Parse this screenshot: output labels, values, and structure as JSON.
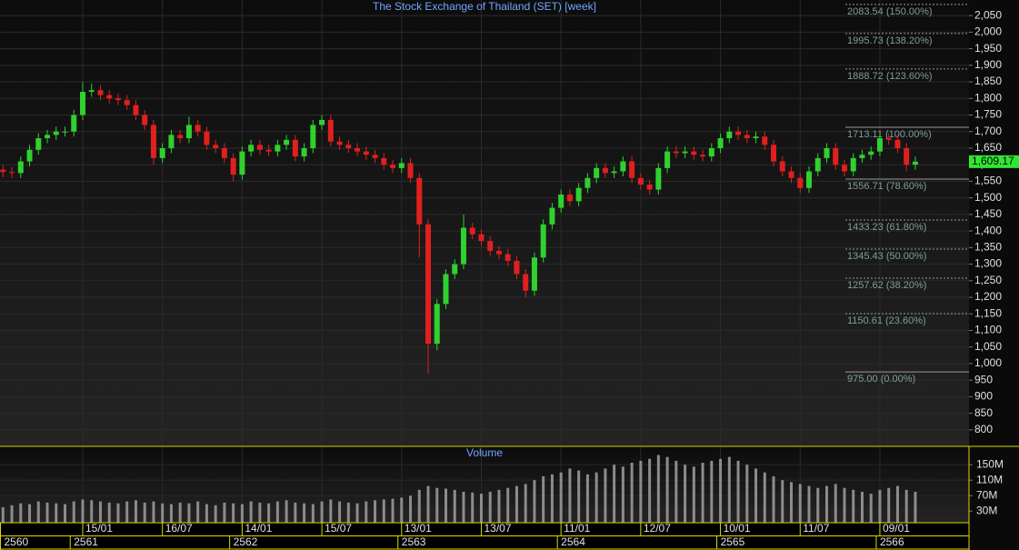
{
  "chart_data": {
    "type": "candlestick",
    "title": "The Stock Exchange of Thailand (SET) [week]",
    "up_color": "#2fd12f",
    "down_color": "#e0201f",
    "grid": true,
    "categories": [
      null,
      null,
      null,
      null,
      null,
      null,
      null,
      null,
      null,
      "15/01",
      null,
      null,
      null,
      null,
      null,
      null,
      null,
      null,
      "16/07",
      null,
      null,
      null,
      null,
      null,
      null,
      null,
      null,
      "14/01",
      null,
      null,
      null,
      null,
      null,
      null,
      null,
      null,
      "15/07",
      null,
      null,
      null,
      null,
      null,
      null,
      null,
      null,
      "13/01",
      null,
      null,
      null,
      null,
      null,
      null,
      null,
      null,
      "13/07",
      null,
      null,
      null,
      null,
      null,
      null,
      null,
      null,
      "11/01",
      null,
      null,
      null,
      null,
      null,
      null,
      null,
      null,
      "12/07",
      null,
      null,
      null,
      null,
      null,
      null,
      null,
      null,
      "10/01",
      null,
      null,
      null,
      null,
      null,
      null,
      null,
      null,
      "11/07",
      null,
      null,
      null,
      null,
      null,
      null,
      null,
      null,
      "09/01",
      null,
      null,
      null,
      null
    ],
    "years": [
      "2560",
      null,
      null,
      null,
      null,
      null,
      null,
      null,
      "2561",
      null,
      null,
      null,
      null,
      null,
      null,
      null,
      null,
      null,
      null,
      null,
      null,
      null,
      null,
      null,
      null,
      null,
      "2562",
      null,
      null,
      null,
      null,
      null,
      null,
      null,
      null,
      null,
      null,
      null,
      null,
      null,
      null,
      null,
      null,
      null,
      null,
      "2563",
      null,
      null,
      null,
      null,
      null,
      null,
      null,
      null,
      null,
      null,
      null,
      null,
      null,
      null,
      null,
      null,
      null,
      "2564",
      null,
      null,
      null,
      null,
      null,
      null,
      null,
      null,
      null,
      null,
      null,
      null,
      null,
      null,
      null,
      null,
      null,
      "2565",
      null,
      null,
      null,
      null,
      null,
      null,
      null,
      null,
      null,
      null,
      null,
      null,
      null,
      null,
      null,
      null,
      null,
      "2566",
      null,
      null,
      null,
      null
    ],
    "open": [
      1585,
      1578,
      1575,
      1610,
      1645,
      1680,
      1690,
      1700,
      1700,
      1750,
      1820,
      1825,
      1810,
      1800,
      1795,
      1780,
      1750,
      1720,
      1620,
      1650,
      1690,
      1680,
      1720,
      1700,
      1660,
      1650,
      1620,
      1570,
      1640,
      1660,
      1645,
      1640,
      1660,
      1675,
      1625,
      1650,
      1720,
      1735,
      1670,
      1660,
      1650,
      1640,
      1630,
      1620,
      1600,
      1590,
      1605,
      1560,
      1420,
      1060,
      1180,
      1270,
      1300,
      1410,
      1390,
      1370,
      1340,
      1330,
      1310,
      1270,
      1220,
      1320,
      1420,
      1470,
      1510,
      1490,
      1530,
      1560,
      1590,
      1575,
      1580,
      1610,
      1560,
      1540,
      1525,
      1590,
      1640,
      1635,
      1640,
      1630,
      1625,
      1650,
      1680,
      1700,
      1690,
      1680,
      1685,
      1660,
      1610,
      1580,
      1560,
      1530,
      1580,
      1620,
      1650,
      1600,
      1580,
      1620,
      1630,
      1640,
      1680,
      1675,
      1650,
      1600
    ],
    "high": [
      1600,
      1593,
      1625,
      1660,
      1695,
      1705,
      1715,
      1715,
      1765,
      1850,
      1845,
      1840,
      1825,
      1815,
      1810,
      1795,
      1765,
      1735,
      1665,
      1705,
      1705,
      1745,
      1735,
      1715,
      1675,
      1665,
      1635,
      1655,
      1675,
      1675,
      1660,
      1675,
      1690,
      1690,
      1665,
      1735,
      1750,
      1750,
      1685,
      1675,
      1665,
      1655,
      1645,
      1635,
      1615,
      1620,
      1620,
      1575,
      1435,
      1195,
      1285,
      1315,
      1450,
      1425,
      1405,
      1385,
      1355,
      1345,
      1325,
      1285,
      1335,
      1435,
      1485,
      1525,
      1525,
      1545,
      1575,
      1605,
      1605,
      1595,
      1625,
      1625,
      1575,
      1555,
      1605,
      1655,
      1655,
      1655,
      1655,
      1645,
      1665,
      1695,
      1715,
      1715,
      1705,
      1700,
      1700,
      1675,
      1625,
      1595,
      1575,
      1595,
      1635,
      1665,
      1665,
      1615,
      1635,
      1645,
      1655,
      1695,
      1695,
      1690,
      1665,
      1625
    ],
    "low": [
      1563,
      1560,
      1560,
      1595,
      1630,
      1665,
      1675,
      1685,
      1685,
      1735,
      1805,
      1795,
      1785,
      1780,
      1765,
      1735,
      1705,
      1600,
      1605,
      1635,
      1665,
      1665,
      1685,
      1645,
      1635,
      1605,
      1550,
      1555,
      1625,
      1630,
      1625,
      1625,
      1645,
      1610,
      1610,
      1635,
      1705,
      1655,
      1645,
      1635,
      1625,
      1615,
      1605,
      1585,
      1575,
      1575,
      1545,
      1320,
      970,
      1040,
      1165,
      1255,
      1285,
      1375,
      1355,
      1325,
      1315,
      1295,
      1255,
      1200,
      1205,
      1305,
      1405,
      1455,
      1475,
      1475,
      1515,
      1545,
      1560,
      1560,
      1565,
      1545,
      1525,
      1510,
      1510,
      1575,
      1620,
      1620,
      1615,
      1610,
      1610,
      1635,
      1665,
      1675,
      1665,
      1665,
      1645,
      1595,
      1565,
      1545,
      1515,
      1515,
      1565,
      1605,
      1585,
      1565,
      1565,
      1605,
      1615,
      1625,
      1660,
      1635,
      1580,
      1585
    ],
    "close": [
      1578,
      1575,
      1610,
      1645,
      1680,
      1690,
      1700,
      1700,
      1750,
      1820,
      1825,
      1810,
      1800,
      1795,
      1780,
      1750,
      1720,
      1620,
      1650,
      1690,
      1680,
      1720,
      1700,
      1660,
      1650,
      1620,
      1570,
      1640,
      1660,
      1645,
      1640,
      1660,
      1675,
      1625,
      1650,
      1720,
      1735,
      1670,
      1660,
      1650,
      1640,
      1630,
      1620,
      1600,
      1590,
      1605,
      1560,
      1420,
      1060,
      1180,
      1270,
      1300,
      1410,
      1390,
      1370,
      1340,
      1330,
      1310,
      1270,
      1220,
      1320,
      1420,
      1470,
      1510,
      1490,
      1530,
      1560,
      1590,
      1575,
      1580,
      1610,
      1560,
      1540,
      1525,
      1590,
      1640,
      1635,
      1640,
      1630,
      1625,
      1650,
      1680,
      1700,
      1690,
      1680,
      1685,
      1660,
      1610,
      1580,
      1560,
      1530,
      1580,
      1620,
      1650,
      1600,
      1580,
      1620,
      1630,
      1640,
      1680,
      1675,
      1650,
      1600,
      1609.17
    ],
    "ylim": [
      753,
      2097
    ],
    "yticks": [
      800,
      850,
      900,
      950,
      {
        "value": 1000,
        "label": "1,000"
      },
      {
        "value": 1050,
        "label": "1,050"
      },
      {
        "value": 1100,
        "label": "1,100"
      },
      {
        "value": 1150,
        "label": "1,150"
      },
      {
        "value": 1200,
        "label": "1,200"
      },
      {
        "value": 1250,
        "label": "1,250"
      },
      {
        "value": 1300,
        "label": "1,300"
      },
      {
        "value": 1350,
        "label": "1,350"
      },
      {
        "value": 1400,
        "label": "1,400"
      },
      {
        "value": 1450,
        "label": "1,450"
      },
      {
        "value": 1500,
        "label": "1,500"
      },
      {
        "value": 1550,
        "label": "1,550"
      },
      {
        "value": 1600,
        "label": "1,600"
      },
      {
        "value": 1650,
        "label": "1,650"
      },
      {
        "value": 1700,
        "label": "1,700"
      },
      {
        "value": 1750,
        "label": "1,750"
      },
      {
        "value": 1800,
        "label": "1,800"
      },
      {
        "value": 1850,
        "label": "1,850"
      },
      {
        "value": 1900,
        "label": "1,900"
      },
      {
        "value": 1950,
        "label": "1,950"
      },
      {
        "value": 2000,
        "label": "2,000"
      },
      {
        "value": 2050,
        "label": "2,050"
      }
    ],
    "last_price": {
      "value": 1609.17,
      "label": "1,609.17",
      "color": "#33e633"
    },
    "levels": [
      {
        "value": 2083.54,
        "label": "2083.54 (150.00%)",
        "dashed": true
      },
      {
        "value": 1995.73,
        "label": "1995.73 (138.20%)",
        "dashed": true
      },
      {
        "value": 1888.72,
        "label": "1888.72 (123.60%)",
        "dashed": true
      },
      {
        "value": 1713.11,
        "label": "1713.11 (100.00%)",
        "dashed": false
      },
      {
        "value": 1556.71,
        "label": "1556.71 (78.60%)",
        "dashed": false
      },
      {
        "value": 1433.23,
        "label": "1433.23 (61.80%)",
        "dashed": true
      },
      {
        "value": 1345.43,
        "label": "1345.43 (50.00%)",
        "dashed": true
      },
      {
        "value": 1257.62,
        "label": "1257.62 (38.20%)",
        "dashed": true
      },
      {
        "value": 1150.61,
        "label": "1150.61 (23.60%)",
        "dashed": true
      },
      {
        "value": 975.0,
        "label": "975.00 (0.00%)",
        "dashed": false
      }
    ],
    "volume": {
      "title": "Volume",
      "color": "#8c8c8c",
      "ylim": [
        0,
        195
      ],
      "yticks": [
        {
          "value": 30,
          "label": "30M"
        },
        {
          "value": 70,
          "label": "70M"
        },
        {
          "value": 110,
          "label": "110M"
        },
        {
          "value": 150,
          "label": "150M"
        }
      ],
      "values": [
        40,
        45,
        50,
        48,
        55,
        52,
        50,
        48,
        55,
        60,
        58,
        55,
        52,
        50,
        55,
        58,
        52,
        55,
        50,
        48,
        52,
        50,
        55,
        48,
        45,
        52,
        50,
        48,
        55,
        52,
        50,
        55,
        58,
        52,
        50,
        48,
        55,
        60,
        55,
        52,
        50,
        55,
        58,
        60,
        62,
        65,
        70,
        85,
        95,
        90,
        88,
        85,
        80,
        78,
        75,
        80,
        85,
        90,
        95,
        100,
        110,
        120,
        125,
        130,
        140,
        135,
        125,
        130,
        140,
        150,
        145,
        155,
        160,
        165,
        175,
        170,
        160,
        150,
        145,
        155,
        160,
        165,
        170,
        160,
        150,
        140,
        130,
        120,
        110,
        105,
        100,
        95,
        90,
        95,
        100,
        90,
        85,
        80,
        75,
        85,
        90,
        95,
        85,
        80
      ]
    }
  }
}
